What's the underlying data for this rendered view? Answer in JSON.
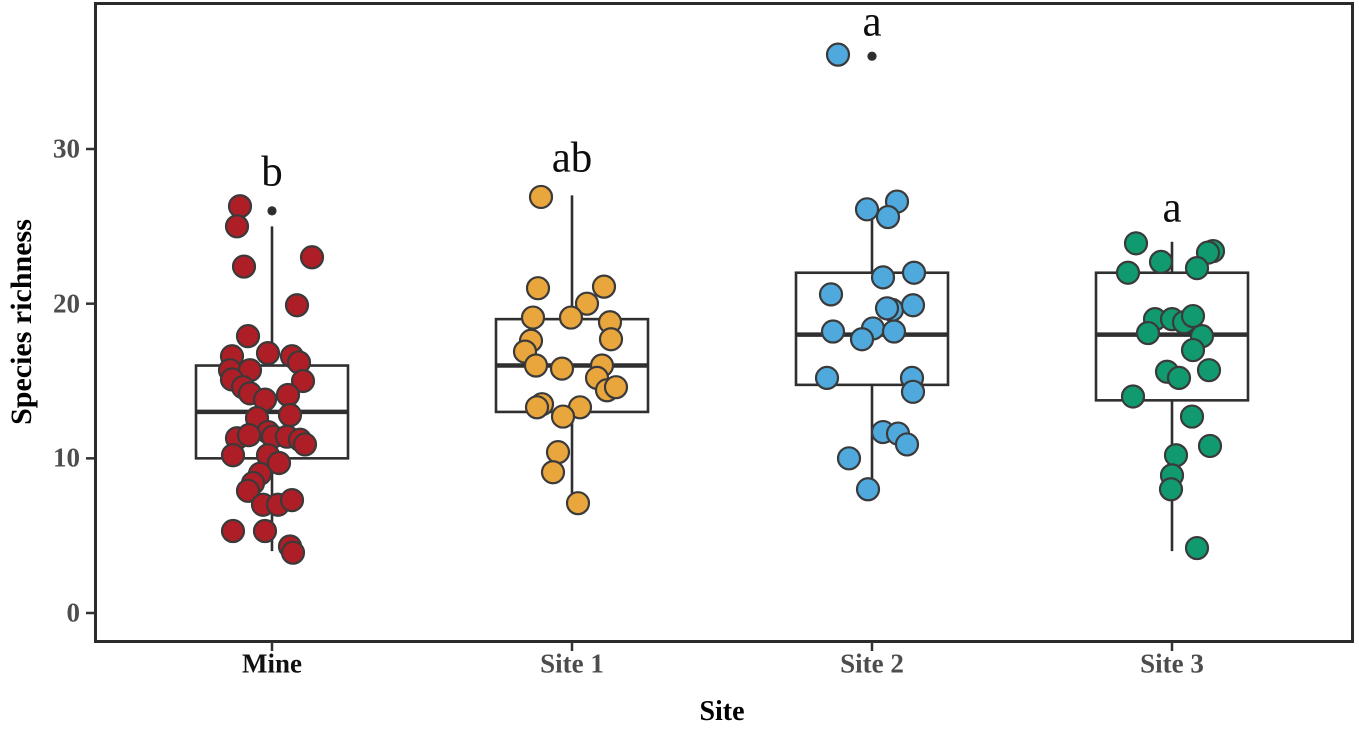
{
  "chart_data": {
    "type": "boxplot",
    "title": "",
    "xlabel": "Site",
    "ylabel": "Species richness",
    "ylim": [
      0,
      39
    ],
    "grid": false,
    "background": "#ffffff",
    "panel_border_color": "#2b2b2b",
    "box_stroke": "#2f2f2f",
    "point_stroke": "#3a3a3a",
    "outlier_dot_color": "#2e2e2e",
    "tick_color": "#333333",
    "tick_label_color": "#4d4d4d",
    "yticks": [
      {
        "value": 30,
        "label": "30"
      },
      {
        "value": 20,
        "label": "20"
      },
      {
        "value": 10,
        "label": "10"
      },
      {
        "value": 0,
        "label": "0"
      }
    ],
    "groups": [
      {
        "label": "Mine",
        "label_color": "#111111",
        "letter": "b",
        "letter_y": 28.5,
        "color": "#AE1E26",
        "box": {
          "whisker_low": 4,
          "q1": 10,
          "median": 13,
          "q3": 16,
          "whisker_high": 25
        },
        "outlier_dots": [
          26
        ],
        "points": [
          [
            -32,
            26.3
          ],
          [
            -35,
            25.0
          ],
          [
            -28,
            22.4
          ],
          [
            40,
            23.0
          ],
          [
            25,
            19.9
          ],
          [
            -24,
            17.9
          ],
          [
            -4,
            16.8
          ],
          [
            -40,
            16.6
          ],
          [
            20,
            16.6
          ],
          [
            27,
            16.2
          ],
          [
            -42,
            15.7
          ],
          [
            -22,
            15.7
          ],
          [
            -40,
            15.1
          ],
          [
            31,
            15.0
          ],
          [
            -29,
            14.6
          ],
          [
            -22,
            14.2
          ],
          [
            16,
            14.1
          ],
          [
            -7,
            13.8
          ],
          [
            18,
            12.8
          ],
          [
            -15,
            12.6
          ],
          [
            -4,
            11.7
          ],
          [
            1,
            11.4
          ],
          [
            15,
            11.4
          ],
          [
            28,
            11.2
          ],
          [
            -35,
            11.3
          ],
          [
            -23,
            11.5
          ],
          [
            33,
            10.9
          ],
          [
            -39,
            10.2
          ],
          [
            -4,
            10.2
          ],
          [
            7,
            9.7
          ],
          [
            -12,
            9.0
          ],
          [
            -19,
            8.4
          ],
          [
            -24,
            7.9
          ],
          [
            -9,
            7.0
          ],
          [
            6,
            7.0
          ],
          [
            20,
            7.3
          ],
          [
            -39,
            5.3
          ],
          [
            -7,
            5.3
          ],
          [
            18,
            4.3
          ],
          [
            21,
            3.9
          ]
        ]
      },
      {
        "label": "Site 1",
        "label_color": "#4d4d4d",
        "letter": "ab",
        "letter_y": 29.4,
        "color": "#E9A63D",
        "box": {
          "whisker_low": 7,
          "q1": 13,
          "median": 16,
          "q3": 19,
          "whisker_high": 27
        },
        "outlier_dots": [],
        "points": [
          [
            -31,
            26.9
          ],
          [
            -34,
            21.0
          ],
          [
            32,
            21.1
          ],
          [
            15,
            20.0
          ],
          [
            -1,
            19.1
          ],
          [
            -39,
            19.1
          ],
          [
            38,
            18.8
          ],
          [
            39,
            17.7
          ],
          [
            -41,
            17.6
          ],
          [
            -47,
            16.9
          ],
          [
            -36,
            16.0
          ],
          [
            -10,
            15.8
          ],
          [
            30,
            16.0
          ],
          [
            25,
            15.2
          ],
          [
            35,
            14.4
          ],
          [
            44,
            14.6
          ],
          [
            -30,
            13.5
          ],
          [
            -35,
            13.3
          ],
          [
            8,
            13.3
          ],
          [
            -9,
            12.7
          ],
          [
            -14,
            10.4
          ],
          [
            -19,
            9.1
          ],
          [
            6,
            7.1
          ]
        ]
      },
      {
        "label": "Site 2",
        "label_color": "#4d4d4d",
        "letter": "a",
        "letter_y": 38.2,
        "color": "#4FA9DD",
        "box": {
          "whisker_low": 8,
          "q1": 14.75,
          "median": 18,
          "q3": 22,
          "whisker_high": 26
        },
        "outlier_dots": [
          36
        ],
        "points": [
          [
            -34,
            36.1
          ],
          [
            -5,
            26.1
          ],
          [
            25,
            26.6
          ],
          [
            16,
            25.6
          ],
          [
            11,
            21.7
          ],
          [
            42,
            22.0
          ],
          [
            -41,
            20.6
          ],
          [
            20,
            19.6
          ],
          [
            15,
            19.7
          ],
          [
            41,
            19.9
          ],
          [
            -39,
            18.2
          ],
          [
            1,
            18.4
          ],
          [
            -10,
            17.7
          ],
          [
            22,
            18.2
          ],
          [
            -45,
            15.2
          ],
          [
            40,
            15.2
          ],
          [
            41,
            14.3
          ],
          [
            11,
            11.7
          ],
          [
            26,
            11.6
          ],
          [
            35,
            10.9
          ],
          [
            -23,
            10.0
          ],
          [
            -4,
            8.0
          ]
        ]
      },
      {
        "label": "Site 3",
        "label_color": "#4d4d4d",
        "letter": "a",
        "letter_y": 26.2,
        "color": "#119A6F",
        "box": {
          "whisker_low": 4,
          "q1": 13.75,
          "median": 18,
          "q3": 22,
          "whisker_high": 24
        },
        "outlier_dots": [],
        "points": [
          [
            -36,
            23.9
          ],
          [
            41,
            23.4
          ],
          [
            36,
            23.3
          ],
          [
            -11,
            22.7
          ],
          [
            25,
            22.3
          ],
          [
            -44,
            22.0
          ],
          [
            -17,
            19.0
          ],
          [
            0,
            19.0
          ],
          [
            12,
            18.8
          ],
          [
            21,
            19.2
          ],
          [
            -24,
            18.1
          ],
          [
            30,
            17.9
          ],
          [
            21,
            17.0
          ],
          [
            -5,
            15.6
          ],
          [
            7,
            15.2
          ],
          [
            37,
            15.7
          ],
          [
            -39,
            14.0
          ],
          [
            20,
            12.7
          ],
          [
            38,
            10.8
          ],
          [
            4,
            10.2
          ],
          [
            0,
            8.9
          ],
          [
            -1,
            8.0
          ],
          [
            25,
            4.2
          ]
        ]
      }
    ]
  }
}
